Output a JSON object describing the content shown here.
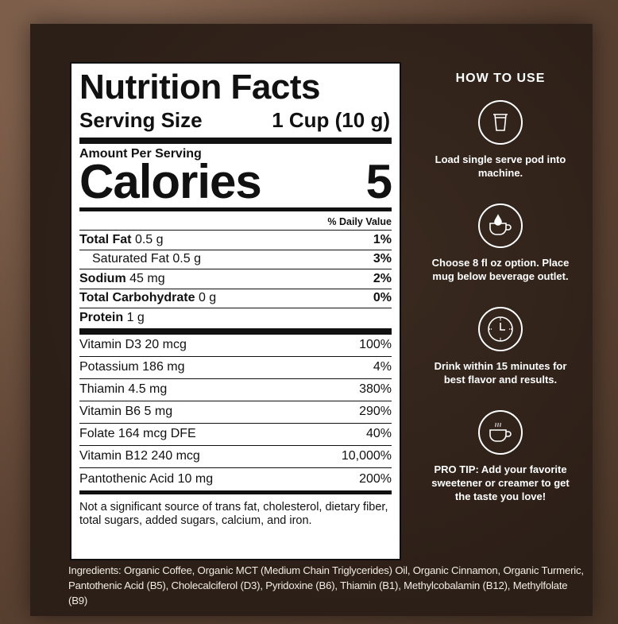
{
  "label": {
    "title": "Nutrition Facts",
    "serving_size_label": "Serving Size",
    "serving_size_value": "1 Cup (10 g)",
    "amount_per_serving": "Amount Per Serving",
    "calories_label": "Calories",
    "calories_value": "5",
    "daily_value_header": "% Daily Value",
    "nutrients": [
      {
        "name": "Total Fat",
        "amount": "0.5 g",
        "dv": "1%"
      },
      {
        "name": "Saturated Fat",
        "amount": "0.5 g",
        "dv": "3%"
      },
      {
        "name": "Sodium",
        "amount": "45 mg",
        "dv": "2%"
      },
      {
        "name": "Total Carbohydrate",
        "amount": "0 g",
        "dv": "0%"
      },
      {
        "name": "Protein",
        "amount": "1 g",
        "dv": ""
      }
    ],
    "vitamins": [
      {
        "name": "Vitamin D3 20 mcg",
        "dv": "100%"
      },
      {
        "name": "Potassium 186 mg",
        "dv": "4%"
      },
      {
        "name": "Thiamin 4.5 mg",
        "dv": "380%"
      },
      {
        "name": "Vitamin B6 5 mg",
        "dv": "290%"
      },
      {
        "name": "Folate 164 mcg DFE",
        "dv": "40%"
      },
      {
        "name": "Vitamin B12 240 mcg",
        "dv": "10,000%"
      },
      {
        "name": "Pantothenic Acid 10 mg",
        "dv": "200%"
      }
    ],
    "footnote": "Not a significant source of trans fat, cholesterol, dietary fiber, total sugars, added sugars, calcium, and iron."
  },
  "ingredients": "Ingredients: Organic Coffee, Organic MCT (Medium Chain Triglycerides) Oil, Organic Cinnamon, Organic Turmeric, Pantothenic Acid (B5), Cholecalciferol (D3), Pyridoxine (B6), Thiamin (B1), Methylcobalamin (B12), Methylfolate (B9)",
  "how_to_use": {
    "title": "HOW TO USE",
    "steps": [
      {
        "icon": "pod-icon",
        "text": "Load single serve pod into machine."
      },
      {
        "icon": "mug-drop-icon",
        "text": "Choose 8 fl oz option. Place mug below beverage outlet."
      },
      {
        "icon": "clock-icon",
        "text": "Drink within 15 minutes for best flavor and results."
      },
      {
        "icon": "steaming-cup-icon",
        "text": "PRO TIP: Add your favorite sweetener or creamer to get the taste you love!"
      }
    ]
  }
}
